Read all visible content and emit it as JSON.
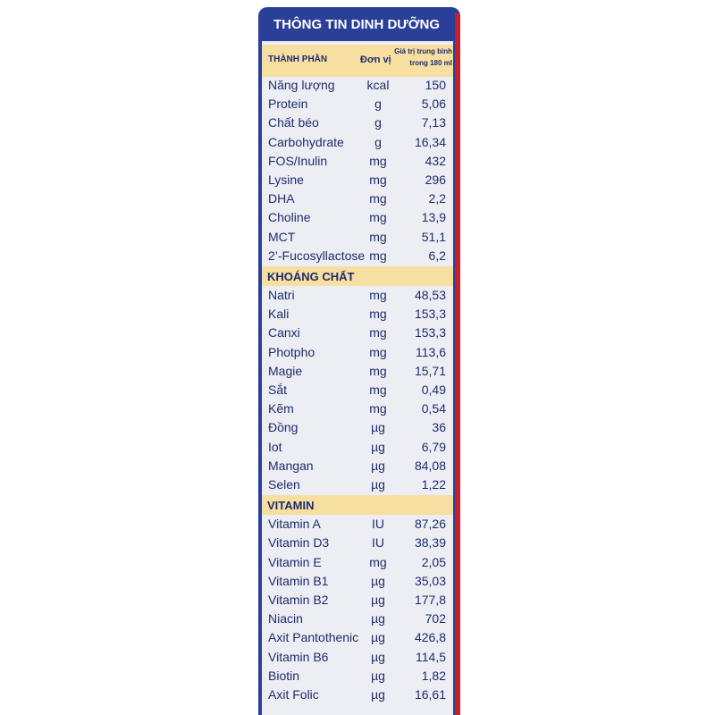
{
  "header": {
    "title": "THÔNG TIN DINH DƯỠNG",
    "columns": [
      "THÀNH PHẦN",
      "Đơn vị",
      "Giá trị trung bình",
      "trong 180 ml"
    ]
  },
  "sections": [
    {
      "rows": [
        [
          "Năng lượng",
          "kcal",
          "150"
        ],
        [
          "Protein",
          "g",
          "5,06"
        ],
        [
          "Chất béo",
          "g",
          "7,13"
        ],
        [
          "Carbohydrate",
          "g",
          "16,34"
        ],
        [
          "FOS/Inulin",
          "mg",
          "432"
        ],
        [
          "Lysine",
          "mg",
          "296"
        ],
        [
          "DHA",
          "mg",
          "2,2"
        ],
        [
          "Choline",
          "mg",
          "13,9"
        ],
        [
          "MCT",
          "mg",
          "51,1"
        ],
        [
          "2’-Fucosyllactose",
          "mg",
          "6,2"
        ]
      ]
    },
    {
      "title": "KHOÁNG CHẤT",
      "rows": [
        [
          "Natri",
          "mg",
          "48,53"
        ],
        [
          "Kali",
          "mg",
          "153,3"
        ],
        [
          "Canxi",
          "mg",
          "153,3"
        ],
        [
          "Photpho",
          "mg",
          "113,6"
        ],
        [
          "Magie",
          "mg",
          "15,71"
        ],
        [
          "Sắt",
          "mg",
          "0,49"
        ],
        [
          "Kẽm",
          "mg",
          "0,54"
        ],
        [
          "Đồng",
          "µg",
          "36"
        ],
        [
          "Iot",
          "µg",
          "6,79"
        ],
        [
          "Mangan",
          "µg",
          "84,08"
        ],
        [
          "Selen",
          "µg",
          "1,22"
        ]
      ]
    },
    {
      "title": "VITAMIN",
      "rows": [
        [
          "Vitamin A",
          "IU",
          "87,26"
        ],
        [
          "Vitamin D3",
          "IU",
          "38,39"
        ],
        [
          "Vitamin E",
          "mg",
          "2,05"
        ],
        [
          "Vitamin B1",
          "µg",
          "35,03"
        ],
        [
          "Vitamin B2",
          "µg",
          "177,8"
        ],
        [
          "Niacin",
          "µg",
          "702"
        ],
        [
          "Axit Pantothenic",
          "µg",
          "426,8"
        ],
        [
          "Vitamin B6",
          "µg",
          "114,5"
        ],
        [
          "Biotin",
          "µg",
          "1,82"
        ],
        [
          "Axit Folic",
          "µg",
          "16,61"
        ]
      ]
    }
  ]
}
